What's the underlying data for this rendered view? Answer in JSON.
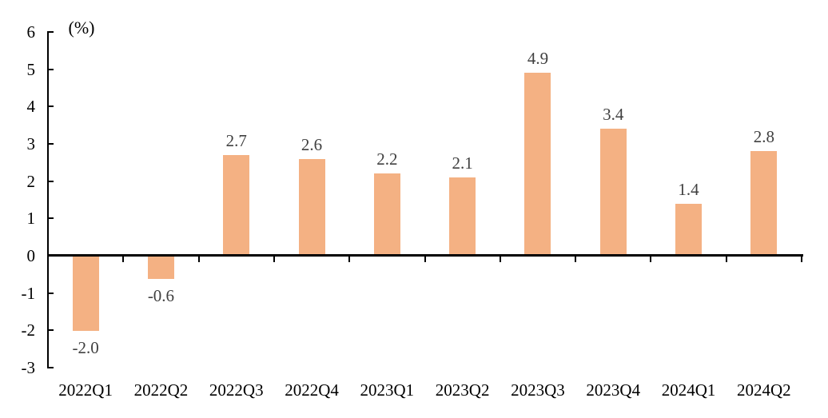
{
  "chart_data": {
    "type": "bar",
    "title": "",
    "xlabel": "",
    "ylabel": "(%)",
    "categories": [
      "2022Q1",
      "2022Q2",
      "2022Q3",
      "2022Q4",
      "2023Q1",
      "2023Q2",
      "2023Q3",
      "2023Q4",
      "2024Q1",
      "2024Q2"
    ],
    "values": [
      -2.0,
      -0.6,
      2.7,
      2.6,
      2.2,
      2.1,
      4.9,
      3.4,
      1.4,
      2.8
    ],
    "data_labels": [
      "-2.0",
      "-0.6",
      "2.7",
      "2.6",
      "2.2",
      "2.1",
      "4.9",
      "3.4",
      "1.4",
      "2.8"
    ],
    "ylim": [
      -3,
      6
    ],
    "yticks": [
      6,
      5,
      4,
      3,
      2,
      1,
      0,
      -1,
      -2,
      -3
    ],
    "grid": false,
    "legend": null,
    "colors": {
      "bar_fill": "#F4B183",
      "axis": "#000000",
      "tick_label": "#000000",
      "data_label": "#404040",
      "background": "#FFFFFF"
    }
  }
}
